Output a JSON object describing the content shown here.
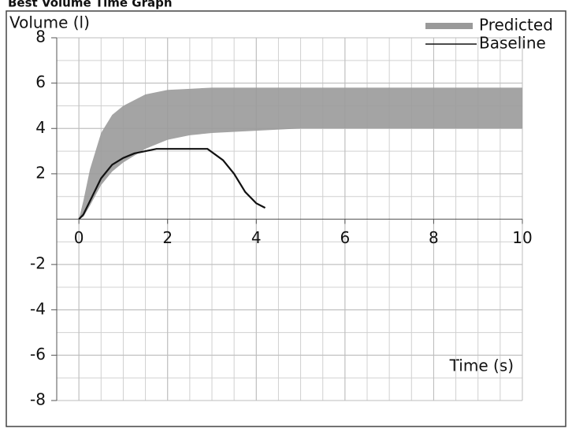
{
  "chart_data": {
    "type": "band-line",
    "title": "Best Volume Time Graph",
    "y_label": "Volume (l)",
    "x_label": "Time (s)",
    "xlim": [
      -0.5,
      10
    ],
    "ylim": [
      -8,
      8
    ],
    "xticks": [
      0,
      2,
      4,
      6,
      8,
      10
    ],
    "yticks": [
      -8,
      -6,
      -4,
      -2,
      2,
      4,
      6,
      8
    ],
    "grid": true,
    "legend": "top-right",
    "series": [
      {
        "name": "Predicted",
        "color": "#9a9a9a",
        "x": [
          0,
          0.1,
          0.25,
          0.5,
          0.75,
          1,
          1.5,
          2,
          2.5,
          3,
          4,
          5,
          6,
          8,
          10
        ],
        "upper": [
          0,
          0.8,
          2.2,
          3.8,
          4.6,
          5.0,
          5.5,
          5.7,
          5.75,
          5.8,
          5.8,
          5.8,
          5.8,
          5.8,
          5.8
        ],
        "lower": [
          0,
          0.1,
          0.6,
          1.5,
          2.1,
          2.5,
          3.1,
          3.5,
          3.7,
          3.8,
          3.9,
          4.0,
          4.0,
          4.0,
          4.0
        ]
      },
      {
        "name": "Baseline",
        "color": "#111111",
        "x": [
          0,
          0.1,
          0.3,
          0.5,
          0.75,
          1,
          1.25,
          1.5,
          1.75,
          2,
          2.5,
          2.9,
          3.25,
          3.5,
          3.75,
          4,
          4.2
        ],
        "values": [
          0,
          0.2,
          1.0,
          1.8,
          2.4,
          2.7,
          2.9,
          3.0,
          3.1,
          3.1,
          3.1,
          3.1,
          2.6,
          2.0,
          1.2,
          0.7,
          0.5
        ]
      }
    ]
  }
}
